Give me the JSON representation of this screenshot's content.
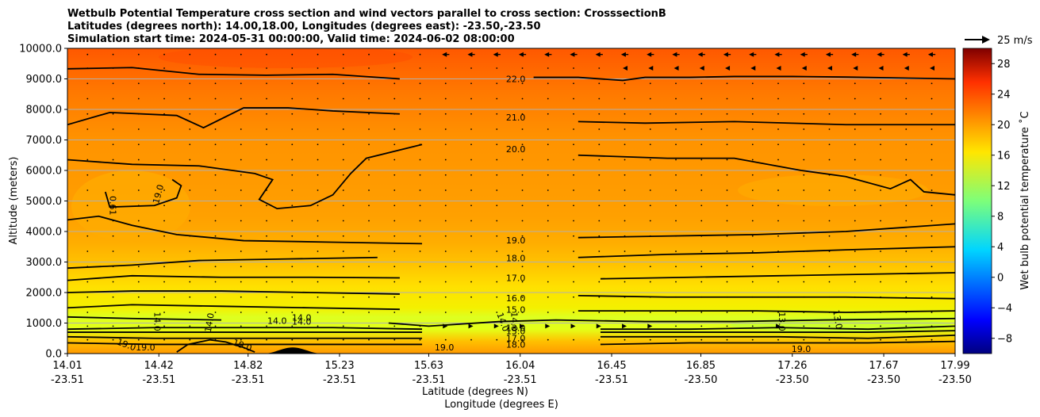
{
  "title": {
    "line1": "Wetbulb Potential Temperature cross section and wind vectors parallel to cross section: CrosssectionB",
    "line2": "Latitudes (degrees north): 14.00,18.00, Longitudes (degrees east): -23.50,-23.50",
    "line3": "Simulation start time: 2024-05-31 00:00:00, Valid time: 2024-06-02 08:00:00"
  },
  "chart_data": {
    "type": "heatmap",
    "ylabel": "Altitude (meters)",
    "xlabel": "Latitude (degrees N)",
    "xlabel2": "Longitude (degrees E)",
    "ylim": [
      0,
      10000
    ],
    "yticks": [
      "0.0",
      "1000.0",
      "2000.0",
      "3000.0",
      "4000.0",
      "5000.0",
      "6000.0",
      "7000.0",
      "8000.0",
      "9000.0",
      "10000.0"
    ],
    "ytick_values": [
      0,
      1000,
      2000,
      3000,
      4000,
      5000,
      6000,
      7000,
      8000,
      9000,
      10000
    ],
    "xlim": [
      14.01,
      17.99
    ],
    "xticks": [
      {
        "lat": "14.01",
        "lon": "-23.51",
        "value": 14.01
      },
      {
        "lat": "14.42",
        "lon": "-23.51",
        "value": 14.42
      },
      {
        "lat": "14.82",
        "lon": "-23.51",
        "value": 14.82
      },
      {
        "lat": "15.23",
        "lon": "-23.51",
        "value": 15.23
      },
      {
        "lat": "15.63",
        "lon": "-23.51",
        "value": 15.63
      },
      {
        "lat": "16.04",
        "lon": "-23.51",
        "value": 16.04
      },
      {
        "lat": "16.45",
        "lon": "-23.51",
        "value": 16.45
      },
      {
        "lat": "16.85",
        "lon": "-23.50",
        "value": 16.85
      },
      {
        "lat": "17.26",
        "lon": "-23.50",
        "value": 17.26
      },
      {
        "lat": "17.67",
        "lon": "-23.50",
        "value": 17.67
      },
      {
        "lat": "17.99",
        "lon": "-23.50",
        "value": 17.99
      }
    ],
    "grid": "horizontal",
    "colorbar": {
      "label": "Wet bulb potential temperature ˚C",
      "range": [
        -10,
        30
      ],
      "colormap": "jet",
      "ticks": [
        "−8",
        "−4",
        "0",
        "4",
        "8",
        "12",
        "16",
        "20",
        "24",
        "28"
      ],
      "tick_values": [
        -8,
        -4,
        0,
        4,
        8,
        12,
        16,
        20,
        24,
        28
      ]
    },
    "wind_key": {
      "label": "25 m/s"
    },
    "contours": [
      {
        "level": "22.0",
        "label_x": 16.02,
        "points": [
          [
            14.01,
            9330
          ],
          [
            14.3,
            9370
          ],
          [
            14.6,
            9150
          ],
          [
            14.9,
            9120
          ],
          [
            15.2,
            9150
          ],
          [
            15.5,
            9000
          ],
          [
            15.95,
            8960
          ],
          [
            16.1,
            9050
          ],
          [
            16.3,
            9050
          ],
          [
            16.5,
            8950
          ],
          [
            16.6,
            9050
          ],
          [
            16.8,
            9050
          ],
          [
            17.0,
            9080
          ],
          [
            17.26,
            9080
          ],
          [
            17.5,
            9060
          ],
          [
            17.99,
            9000
          ]
        ]
      },
      {
        "level": "21.0",
        "label_x": 16.02,
        "points": [
          [
            14.01,
            7500
          ],
          [
            14.2,
            7900
          ],
          [
            14.5,
            7800
          ],
          [
            14.62,
            7400
          ],
          [
            14.8,
            8050
          ],
          [
            15.0,
            8050
          ],
          [
            15.2,
            7950
          ],
          [
            15.5,
            7850
          ],
          [
            15.95,
            7780
          ],
          [
            16.3,
            7600
          ],
          [
            16.6,
            7550
          ],
          [
            17.0,
            7600
          ],
          [
            17.5,
            7500
          ],
          [
            17.8,
            7500
          ],
          [
            17.99,
            7500
          ]
        ]
      },
      {
        "level": "20.0",
        "label_x": 16.02,
        "points": [
          [
            14.01,
            6350
          ],
          [
            14.3,
            6200
          ],
          [
            14.6,
            6150
          ],
          [
            14.85,
            5900
          ],
          [
            14.93,
            5700
          ],
          [
            14.87,
            5050
          ],
          [
            14.95,
            4750
          ],
          [
            15.1,
            4850
          ],
          [
            15.2,
            5200
          ],
          [
            15.28,
            5900
          ],
          [
            15.35,
            6400
          ],
          [
            15.6,
            6850
          ],
          [
            15.95,
            6750
          ],
          [
            16.3,
            6500
          ],
          [
            16.7,
            6400
          ],
          [
            17.0,
            6400
          ],
          [
            17.3,
            6000
          ],
          [
            17.5,
            5800
          ],
          [
            17.7,
            5400
          ],
          [
            17.79,
            5700
          ],
          [
            17.85,
            5300
          ],
          [
            17.99,
            5200
          ]
        ]
      },
      {
        "level": "19.0",
        "label_x": 16.02,
        "points": [
          [
            14.01,
            4380
          ],
          [
            14.15,
            4500
          ],
          [
            14.3,
            4200
          ],
          [
            14.5,
            3900
          ],
          [
            14.8,
            3700
          ],
          [
            15.2,
            3650
          ],
          [
            15.6,
            3600
          ],
          [
            15.95,
            3700
          ],
          [
            16.3,
            3800
          ],
          [
            16.7,
            3850
          ],
          [
            17.1,
            3900
          ],
          [
            17.5,
            4000
          ],
          [
            17.99,
            4250
          ]
        ]
      },
      {
        "level": "18.0",
        "label_x": 16.02,
        "points": [
          [
            14.01,
            2800
          ],
          [
            14.3,
            2900
          ],
          [
            14.6,
            3050
          ],
          [
            15.0,
            3100
          ],
          [
            15.4,
            3150
          ],
          [
            15.95,
            3120
          ],
          [
            16.3,
            3150
          ],
          [
            16.7,
            3250
          ],
          [
            17.1,
            3300
          ],
          [
            17.5,
            3400
          ],
          [
            17.99,
            3500
          ]
        ]
      },
      {
        "level": "17.0",
        "label_x": 16.02,
        "points": [
          [
            14.01,
            2400
          ],
          [
            14.3,
            2550
          ],
          [
            14.7,
            2500
          ],
          [
            15.1,
            2500
          ],
          [
            15.5,
            2480
          ],
          [
            15.95,
            2480
          ],
          [
            16.4,
            2450
          ],
          [
            16.8,
            2500
          ],
          [
            17.2,
            2550
          ],
          [
            17.6,
            2600
          ],
          [
            17.99,
            2650
          ]
        ]
      },
      {
        "level": "16.0",
        "label_x": 16.02,
        "points": [
          [
            14.01,
            2000
          ],
          [
            14.3,
            2050
          ],
          [
            14.7,
            2050
          ],
          [
            15.1,
            2000
          ],
          [
            15.5,
            1950
          ],
          [
            15.95,
            1800
          ],
          [
            16.3,
            1900
          ],
          [
            16.7,
            1850
          ],
          [
            17.1,
            1850
          ],
          [
            17.5,
            1850
          ],
          [
            17.99,
            1800
          ]
        ]
      },
      {
        "level": "15.0",
        "label_x": 16.02,
        "points": [
          [
            14.01,
            1500
          ],
          [
            14.3,
            1600
          ],
          [
            14.7,
            1550
          ],
          [
            15.1,
            1500
          ],
          [
            15.5,
            1450
          ],
          [
            15.95,
            1450
          ],
          [
            16.3,
            1400
          ],
          [
            16.7,
            1400
          ],
          [
            17.1,
            1400
          ],
          [
            17.5,
            1350
          ],
          [
            17.99,
            1400
          ]
        ]
      },
      {
        "level": "14.0",
        "label_x": 15.06,
        "points": [
          [
            14.01,
            1200
          ],
          [
            14.3,
            1150
          ],
          [
            14.7,
            1100
          ],
          [
            15.1,
            1050
          ],
          [
            15.45,
            1000
          ],
          [
            15.63,
            900
          ],
          [
            15.95,
            1050
          ],
          [
            16.2,
            1100
          ],
          [
            16.6,
            1050
          ],
          [
            17.0,
            1050
          ],
          [
            17.4,
            1100
          ],
          [
            17.99,
            1150
          ]
        ]
      },
      {
        "level": "13.0",
        "label_x": 16.02,
        "points": [
          [
            14.01,
            800
          ],
          [
            14.4,
            850
          ],
          [
            14.8,
            850
          ],
          [
            15.2,
            850
          ],
          [
            15.6,
            800
          ],
          [
            15.95,
            850
          ],
          [
            16.4,
            800
          ],
          [
            16.8,
            800
          ],
          [
            17.2,
            850
          ],
          [
            17.6,
            800
          ],
          [
            17.99,
            900
          ]
        ]
      },
      {
        "level": "15.0",
        "label_x": 16.02,
        "points": [
          [
            14.01,
            700
          ],
          [
            14.4,
            700
          ],
          [
            14.8,
            700
          ],
          [
            15.2,
            700
          ],
          [
            15.6,
            700
          ],
          [
            15.95,
            750
          ],
          [
            16.4,
            700
          ],
          [
            16.8,
            700
          ],
          [
            17.2,
            700
          ],
          [
            17.6,
            700
          ],
          [
            17.99,
            750
          ]
        ]
      },
      {
        "level": "17.0",
        "label_x": 16.02,
        "points": [
          [
            14.01,
            550
          ],
          [
            14.4,
            500
          ],
          [
            14.8,
            500
          ],
          [
            15.2,
            500
          ],
          [
            15.6,
            500
          ],
          [
            15.95,
            500
          ],
          [
            16.4,
            550
          ],
          [
            16.8,
            550
          ],
          [
            17.2,
            550
          ],
          [
            17.6,
            500
          ],
          [
            17.99,
            600
          ]
        ]
      },
      {
        "level": "18.0",
        "label_x": 16.02,
        "points": [
          [
            14.01,
            350
          ],
          [
            14.4,
            300
          ],
          [
            14.8,
            300
          ],
          [
            15.2,
            300
          ],
          [
            15.6,
            300
          ],
          [
            15.95,
            300
          ],
          [
            16.4,
            300
          ],
          [
            16.8,
            350
          ],
          [
            17.2,
            350
          ],
          [
            17.6,
            350
          ],
          [
            17.99,
            400
          ]
        ]
      }
    ],
    "local_contours": [
      {
        "level": "19.0",
        "label_x": 14.44,
        "points": [
          [
            14.18,
            5300
          ],
          [
            14.2,
            4800
          ],
          [
            14.4,
            4850
          ],
          [
            14.5,
            5100
          ],
          [
            14.52,
            5500
          ],
          [
            14.48,
            5700
          ]
        ]
      },
      {
        "level": "19.0",
        "label_x": 14.3,
        "points": [
          [
            14.5,
            50
          ],
          [
            14.55,
            300
          ],
          [
            14.65,
            450
          ],
          [
            14.72,
            380
          ],
          [
            14.8,
            200
          ],
          [
            14.85,
            50
          ]
        ]
      }
    ],
    "annotations": [
      {
        "text": "0.61",
        "x": 14.2,
        "y": 4850,
        "rot": 90
      },
      {
        "text": "19.0",
        "x": 14.43,
        "y": 5200,
        "rot": -75
      },
      {
        "text": "14.0",
        "x": 14.4,
        "y": 1050,
        "rot": 90
      },
      {
        "text": "14.0",
        "x": 14.66,
        "y": 1000,
        "rot": -80
      },
      {
        "text": "14.0",
        "x": 14.95,
        "y": 980,
        "rot": 0
      },
      {
        "text": "14.0",
        "x": 15.06,
        "y": 1080,
        "rot": 0
      },
      {
        "text": "14.0",
        "x": 15.95,
        "y": 1000,
        "rot": 70
      },
      {
        "text": "14.0",
        "x": 16.0,
        "y": 1050,
        "rot": 90
      },
      {
        "text": "13.0",
        "x": 17.2,
        "y": 1050,
        "rot": 90
      },
      {
        "text": "13.0",
        "x": 17.45,
        "y": 1100,
        "rot": 80
      },
      {
        "text": "19.0",
        "x": 14.27,
        "y": 200,
        "rot": 20
      },
      {
        "text": "19.0",
        "x": 14.36,
        "y": 100,
        "rot": 0
      },
      {
        "text": "19.0",
        "x": 14.79,
        "y": 180,
        "rot": 20
      },
      {
        "text": "19.0",
        "x": 15.7,
        "y": 100,
        "rot": 0
      },
      {
        "text": "19.0",
        "x": 17.3,
        "y": 50,
        "rot": 0
      }
    ],
    "terrain": {
      "center_lat": 15.02,
      "half_width_lat": 0.13,
      "max_altitude_m": 200
    },
    "wind_vectors": {
      "altitudes": [
        9800,
        9350,
        8850,
        8350,
        7850,
        7350,
        6850,
        6350,
        5850,
        5350,
        4850,
        4350,
        3850,
        3350,
        2850,
        2350,
        1850,
        1350,
        900,
        450
      ],
      "lat_start": 14.1,
      "lat_step": 0.1147,
      "count": 35,
      "arrows": [
        {
          "alt": 9800,
          "lat_from": 15.62,
          "lat_to": 17.99,
          "u": -12
        },
        {
          "alt": 9350,
          "lat_from": 16.5,
          "lat_to": 17.99,
          "u": -6
        },
        {
          "alt": 900,
          "lat_from": 15.6,
          "lat_to": 16.7,
          "u": 4
        },
        {
          "alt": 900,
          "lat_from": 17.1,
          "lat_to": 17.3,
          "u": 8
        }
      ]
    }
  }
}
